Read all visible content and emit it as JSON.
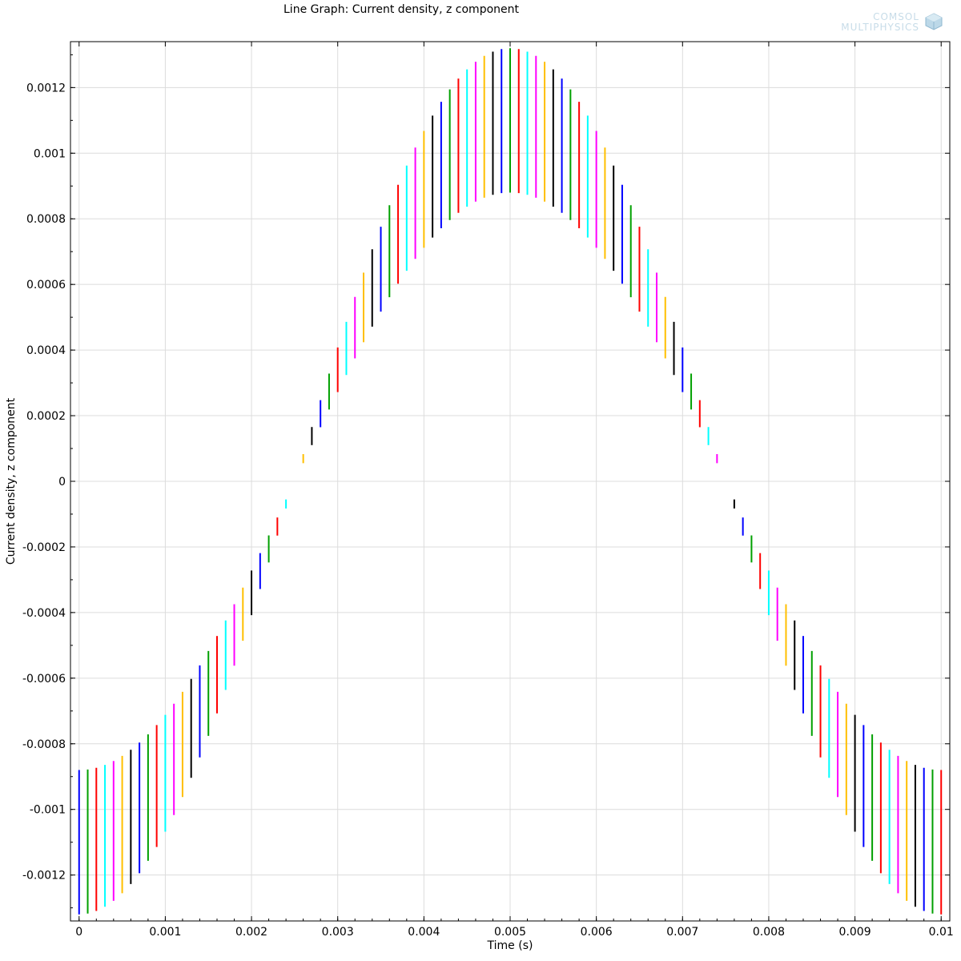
{
  "logo": {
    "line1": "COMSOL",
    "line2": "MULTIPHYSICS",
    "icon": "comsol-cube-icon"
  },
  "chart_data": {
    "type": "line",
    "title": "Line Graph: Current density, z component",
    "xlabel": "Time (s)",
    "ylabel": "Current density, z component",
    "xlim": [
      -0.0001,
      0.0101
    ],
    "ylim": [
      -0.00134,
      0.00134
    ],
    "xticks": [
      0,
      0.001,
      0.002,
      0.003,
      0.004,
      0.005,
      0.006,
      0.007,
      0.008,
      0.009,
      0.01
    ],
    "xtick_labels": [
      "0",
      "0.001",
      "0.002",
      "0.003",
      "0.004",
      "0.005",
      "0.006",
      "0.007",
      "0.008",
      "0.009",
      "0.01"
    ],
    "yticks": [
      -0.0012,
      -0.001,
      -0.0008,
      -0.0006,
      -0.0004,
      -0.0002,
      0,
      0.0002,
      0.0004,
      0.0006,
      0.0008,
      0.001,
      0.0012
    ],
    "ytick_labels": [
      "-0.0012",
      "-0.001",
      "-0.0008",
      "-0.0006",
      "-0.0004",
      "-0.0002",
      "0",
      "0.0002",
      "0.0004",
      "0.0006",
      "0.0008",
      "0.001",
      "0.0012"
    ],
    "grid": true,
    "series_colors": [
      "#0000ff",
      "#00a000",
      "#ff0000",
      "#00ffff",
      "#ff00ff",
      "#ffbf00",
      "#000000"
    ],
    "segments": {
      "t_start": 0,
      "t_step": 0.0001,
      "count": 101,
      "center_formula": "-A*cos(2*pi*t/0.01)",
      "amplitude": 0.0011,
      "half_length_max": 0.00022,
      "note_visual": "each time step drawn as a short vertical segment centered on the curve, length proportional to |value|"
    }
  }
}
